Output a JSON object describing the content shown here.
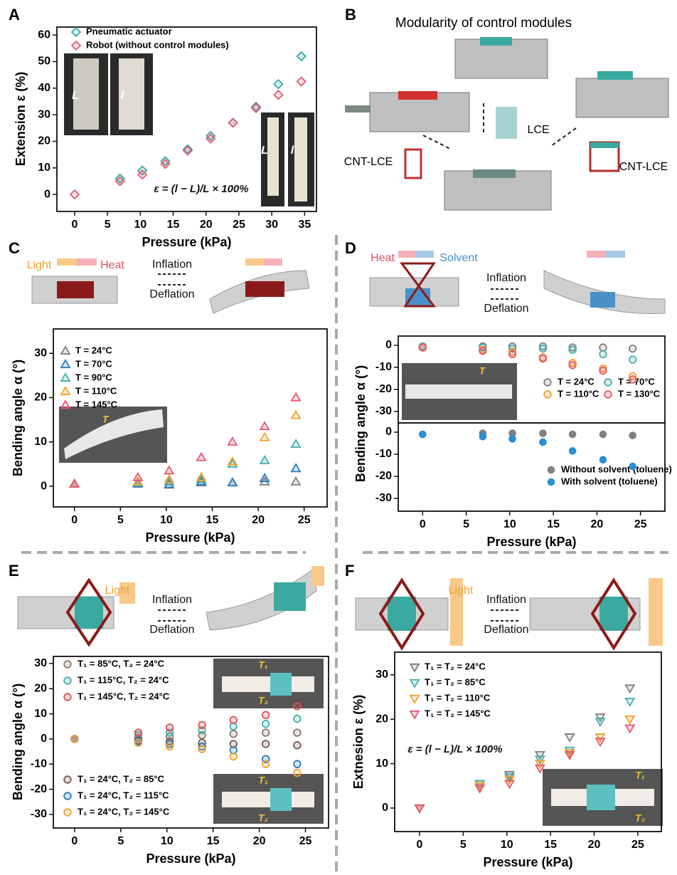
{
  "panel_labels": [
    "A",
    "B",
    "C",
    "D",
    "E",
    "F"
  ],
  "diagram_b": {
    "title": "Modularity of control modules",
    "labels": [
      "LCE",
      "CNT-LCE",
      "CNT-LCE"
    ]
  },
  "schematics": {
    "C": {
      "labels": [
        "Light",
        "Heat",
        "Inflation",
        "Deflation"
      ]
    },
    "D": {
      "labels": [
        "Heat",
        "Solvent",
        "Inflation",
        "Deflation"
      ]
    },
    "E": {
      "labels": [
        "Light",
        "Inflation",
        "Deflation"
      ]
    },
    "F": {
      "labels": [
        "Light",
        "Inflation",
        "Deflation"
      ]
    }
  },
  "chart_data": [
    {
      "type": "scatter",
      "xlabel": "Pressure (kPa)",
      "ylabel": "Extension ε (%)",
      "xlim": [
        -2.7,
        36.8
      ],
      "ylim": [
        -6.4,
        63
      ],
      "xticks": [
        0,
        5,
        10,
        15,
        20,
        25,
        30,
        35
      ],
      "yticks": [
        0,
        10,
        20,
        30,
        40,
        50,
        60
      ],
      "marker": "diamond",
      "marker_fill": "open",
      "legend": "upper left",
      "x": [
        0,
        6.9,
        10.3,
        13.8,
        17.2,
        20.7,
        24.1,
        27.6,
        31,
        34.5
      ],
      "series": [
        {
          "name": "Pneumatic actuator",
          "color": "#3aa8a8",
          "values": [
            null,
            6,
            9,
            12.5,
            17,
            22,
            27,
            33,
            41.5,
            52
          ]
        },
        {
          "name": "Robot (without control modules)",
          "color": "#e06070",
          "values": [
            0,
            5,
            7.5,
            11.5,
            16.5,
            21,
            27,
            32.5,
            37.5,
            42.5
          ]
        }
      ],
      "annotations": [
        "ε = (l − L)/L × 100%",
        "L",
        "l",
        "L",
        "l"
      ]
    },
    {
      "type": "scatter",
      "xlabel": "Pressure (kPa)",
      "ylabel": "Bending angle α (°)",
      "xlim": [
        -2.3,
        27.5
      ],
      "ylim": [
        -4.65,
        35.5
      ],
      "xticks": [
        0,
        5,
        10,
        15,
        20,
        25
      ],
      "yticks": [
        0,
        10,
        20,
        30
      ],
      "marker": "triangle",
      "marker_fill": "open",
      "legend": "upper left",
      "x": [
        0,
        6.9,
        10.3,
        13.8,
        17.2,
        20.7,
        24.1
      ],
      "series": [
        {
          "name": "T = 24°C",
          "color": "#808080",
          "values": [
            0.5,
            0.5,
            0.3,
            0.8,
            0.8,
            1,
            1
          ]
        },
        {
          "name": "T = 70°C",
          "color": "#2b7bbf",
          "values": [
            0.5,
            0.6,
            0.4,
            1,
            0.8,
            1.8,
            4
          ]
        },
        {
          "name": "T = 90°C",
          "color": "#45b0b0",
          "values": [
            0.5,
            0.8,
            1,
            1.5,
            5,
            5.8,
            9.5
          ]
        },
        {
          "name": "T = 110°C",
          "color": "#f5a030",
          "values": [
            0.5,
            1,
            1.5,
            2,
            5.5,
            11,
            16
          ]
        },
        {
          "name": "T = 145°C",
          "color": "#e8576a",
          "values": [
            0.5,
            2,
            3.5,
            6.5,
            10,
            13.5,
            20
          ]
        }
      ],
      "annotations": [
        "T"
      ]
    },
    {
      "type": "scatter",
      "ylabel": "Bending angle α (°)",
      "xlim": [
        -2.8,
        27.8
      ],
      "ylim": [
        -35.2,
        4.2
      ],
      "yticks": [
        0,
        -10,
        -20,
        -30
      ],
      "marker": "circle",
      "marker_fill": "open",
      "legend": "lower right",
      "x": [
        0,
        6.9,
        10.3,
        13.8,
        17.2,
        20.7,
        24.1
      ],
      "series": [
        {
          "name": "T = 24°C",
          "color": "#808080",
          "values": [
            -0.5,
            -0.5,
            -0.5,
            -0.5,
            -1,
            -1,
            -1.5
          ]
        },
        {
          "name": "T = 70°C",
          "color": "#45b0b0",
          "values": [
            -0.5,
            -1,
            -1.5,
            -1.5,
            -2,
            -4,
            -6.5
          ]
        },
        {
          "name": "T = 110°C",
          "color": "#f5a030",
          "values": [
            -1,
            -2,
            -3,
            -5.5,
            -8,
            -10.5,
            -14
          ]
        },
        {
          "name": "T = 130°C",
          "color": "#e8576a",
          "values": [
            -1,
            -2.5,
            -4,
            -6,
            -9,
            -11.5,
            -15.5
          ]
        }
      ],
      "annotations": [
        "T"
      ]
    },
    {
      "type": "scatter",
      "xlabel": "Pressure (kPa)",
      "xlim": [
        -2.8,
        27.8
      ],
      "ylim": [
        -35.8,
        4.2
      ],
      "xticks": [
        0,
        5,
        10,
        15,
        20,
        25
      ],
      "yticks": [
        0,
        -10,
        -20,
        -30
      ],
      "marker": "circle",
      "marker_fill": "filled",
      "legend": "lower right",
      "x": [
        0,
        6.9,
        10.3,
        13.8,
        17.2,
        20.7,
        24.1
      ],
      "series": [
        {
          "name": "Without solvent (toluene)",
          "color": "#808080",
          "values": [
            -1,
            -0.5,
            -0.5,
            -0.5,
            -1,
            -1,
            -1.5
          ]
        },
        {
          "name": "With solvent (toluene)",
          "color": "#2b8fd0",
          "values": [
            -1,
            -2,
            -3,
            -4.5,
            -8.5,
            -12.5,
            -15.5
          ]
        }
      ]
    },
    {
      "type": "scatter",
      "xlabel": "Pressure (kPa)",
      "ylabel": "Bending angle α (°)",
      "xlim": [
        -2.3,
        27.5
      ],
      "ylim": [
        -35.4,
        32.8
      ],
      "xticks": [
        0,
        5,
        10,
        15,
        20,
        25
      ],
      "yticks": [
        -30,
        -20,
        -10,
        0,
        10,
        20,
        30
      ],
      "marker": "circle",
      "marker_fill": "open",
      "legend": "left",
      "x": [
        0,
        6.9,
        10.3,
        13.8,
        17.2,
        20.7,
        24.1
      ],
      "series": [
        {
          "name": "T₁ = 85°C, T₂ = 24°C",
          "color": "#8c7a6b",
          "values": [
            0,
            0.5,
            1,
            1.5,
            2,
            2.5,
            2.5
          ]
        },
        {
          "name": "T₁ = 115°C, T₂ = 24°C",
          "color": "#45b0a8",
          "values": [
            0,
            1.5,
            2.5,
            3.5,
            5,
            6,
            8
          ]
        },
        {
          "name": "T₁ = 145°C, T₂ = 24°C",
          "color": "#e05050",
          "values": [
            0,
            2.5,
            4.5,
            5.5,
            7.5,
            9.5,
            13
          ]
        },
        {
          "name": "T₁ = 24°C, T₂ = 85°C",
          "color": "#7a5a50",
          "values": [
            0,
            -0.5,
            -1,
            -1.5,
            -2,
            -2,
            -2.5
          ]
        },
        {
          "name": "T₁ = 24°C, T₂ = 115°C",
          "color": "#2b7bbf",
          "values": [
            0,
            -1,
            -2,
            -3,
            -4.5,
            -8,
            -10
          ]
        },
        {
          "name": "T₁ = 24°C, T₂ = 145°C",
          "color": "#f0a030",
          "values": [
            0,
            -1.5,
            -3,
            -4,
            -7,
            -10,
            -13.5
          ]
        }
      ],
      "annotations": [
        "T₁",
        "T₂",
        "T₁",
        "T₂"
      ]
    },
    {
      "type": "scatter",
      "xlabel": "Pressure (kPa)",
      "ylabel": "Extnesion ε (%)",
      "xlim": [
        -2.85,
        27.7
      ],
      "ylim": [
        -5.3,
        35.1
      ],
      "xticks": [
        0,
        5,
        10,
        15,
        20,
        25
      ],
      "yticks": [
        0,
        10,
        20,
        30
      ],
      "marker": "triangle_down",
      "marker_fill": "open",
      "legend": "upper left",
      "x": [
        0,
        6.9,
        10.3,
        13.8,
        17.2,
        20.7,
        24.1
      ],
      "series": [
        {
          "name": "T₁ = T₂ = 24°C",
          "color": "#808080",
          "values": [
            0,
            5.5,
            7.5,
            12,
            16,
            20.5,
            27
          ]
        },
        {
          "name": "T₁ = T₂ = 85°C",
          "color": "#45b0b0",
          "values": [
            0,
            5.5,
            7,
            11,
            13,
            19.5,
            24
          ]
        },
        {
          "name": "T₁ = T₂ = 110°C",
          "color": "#f5a030",
          "values": [
            0,
            5,
            6.5,
            10,
            12.5,
            16,
            20
          ]
        },
        {
          "name": "T₁ = T₂ = 145°C",
          "color": "#e8576a",
          "values": [
            0,
            4.5,
            5.5,
            9,
            12,
            15,
            18
          ]
        }
      ],
      "annotations": [
        "ε = (l − L)/L × 100%",
        "T₁",
        "T₂"
      ]
    }
  ]
}
